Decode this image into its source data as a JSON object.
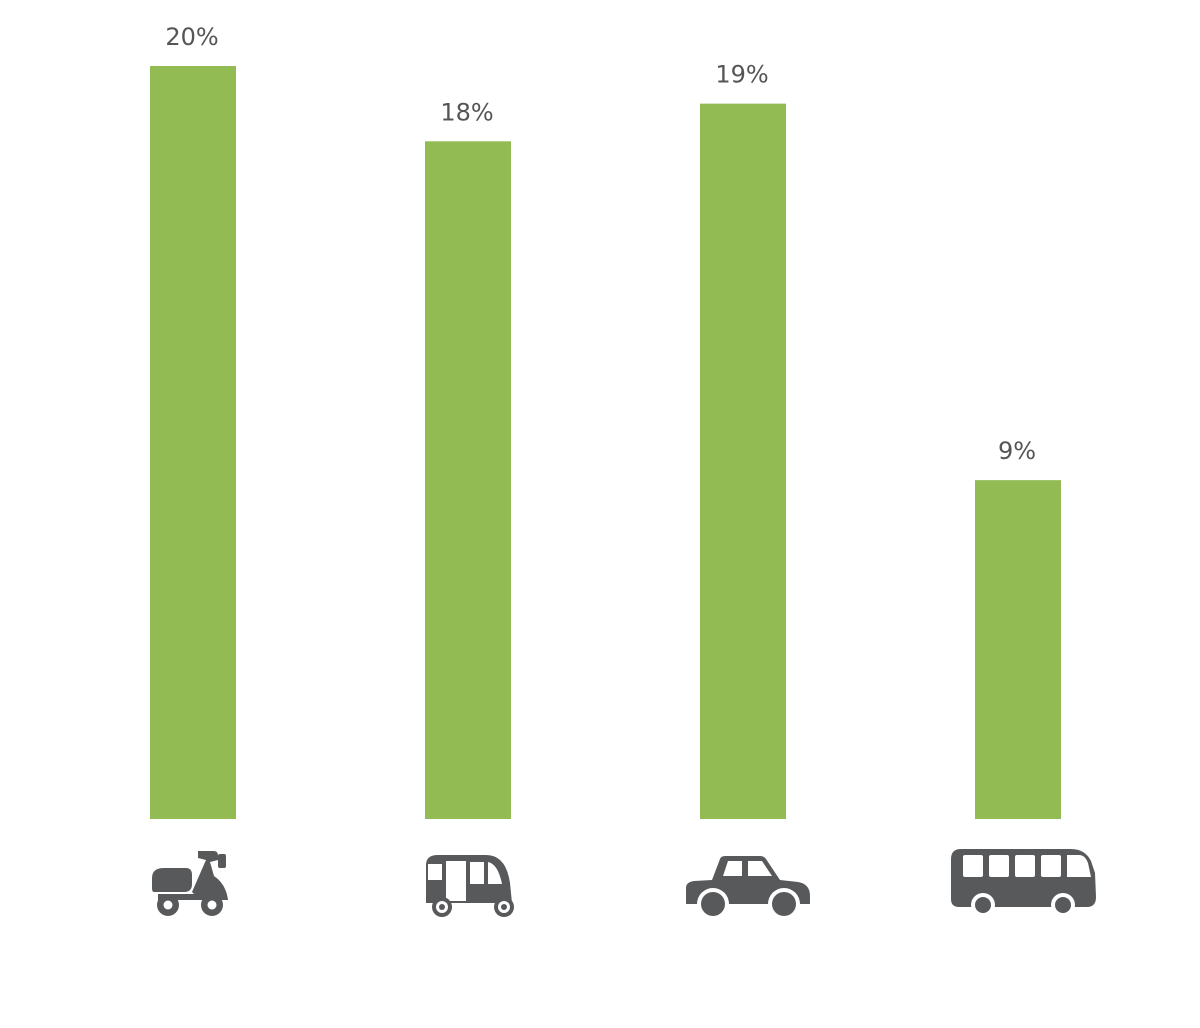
{
  "chart_data": {
    "type": "bar",
    "categories": [
      "scooter",
      "auto-rickshaw",
      "car",
      "bus"
    ],
    "values": [
      20,
      18,
      19,
      9
    ],
    "value_labels": [
      "20%",
      "18%",
      "19%",
      "9%"
    ],
    "category_icons": [
      "scooter-icon",
      "auto-rickshaw-icon",
      "car-icon",
      "bus-icon"
    ],
    "ylim": [
      0,
      20
    ],
    "grid": false,
    "legend": "none",
    "colors": {
      "bar": "#92BB53",
      "label": "#555555",
      "icon": "#58595B"
    }
  }
}
